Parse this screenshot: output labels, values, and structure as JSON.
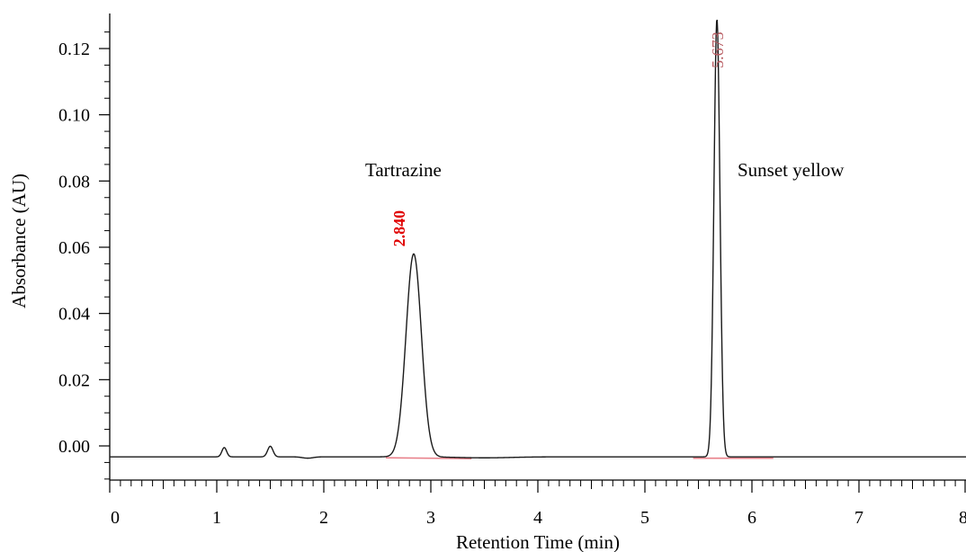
{
  "chart_data": {
    "type": "line",
    "xlabel": "Retention Time (min)",
    "ylabel": "Absorbance (AU)",
    "xlim": [
      0,
      8
    ],
    "ylim": [
      -0.011,
      0.13
    ],
    "xticks": [
      "0",
      "1",
      "2",
      "3",
      "4",
      "5",
      "6",
      "7",
      "8"
    ],
    "xtick_values": [
      0,
      1,
      2,
      3,
      4,
      5,
      6,
      7,
      8
    ],
    "yticks": [
      "0.00",
      "0.02",
      "0.04",
      "0.06",
      "0.08",
      "0.10",
      "0.12"
    ],
    "ytick_values": [
      0,
      0.02,
      0.04,
      0.06,
      0.08,
      0.1,
      0.12
    ],
    "minor_xtick_step": 0.1,
    "baseline": -0.0033,
    "peaks": [
      {
        "rt": 1.07,
        "height": 0.0028,
        "width": 0.022
      },
      {
        "rt": 1.5,
        "height": 0.0032,
        "width": 0.025
      },
      {
        "rt": 2.84,
        "height": 0.0613,
        "width": 0.072,
        "label": "2.840",
        "name": "Tartrazine"
      },
      {
        "rt": 5.673,
        "height": 0.1323,
        "width": 0.028,
        "label": "5.673",
        "name": "Sunset yellow"
      }
    ],
    "colors": {
      "trace": "#1a1a1a",
      "integration_baseline": "#e8808a",
      "tartrazine_rt_label": "#e00000",
      "sunset_rt_label": "#b85a60"
    }
  }
}
